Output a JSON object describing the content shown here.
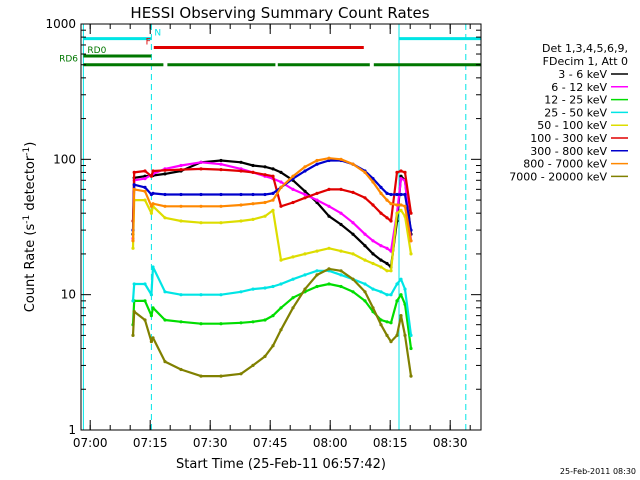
{
  "chart_data": {
    "type": "line",
    "title": "HESSI Observing Summary Count Rates",
    "xlabel": "Start Time (25-Feb-11 06:57:42)",
    "ylabel_pre": "Count Rate (s",
    "ylabel_sup1": "-1",
    "ylabel_mid": " detector",
    "ylabel_sup2": "-1",
    "ylabel_post": ")",
    "x_unit": "minutes since 06:57:42",
    "xlim": [
      0,
      100
    ],
    "ylim": [
      1,
      1000
    ],
    "y_scale": "log",
    "x_ticks": [
      {
        "label": "07:00",
        "value": 2.3
      },
      {
        "label": "07:15",
        "value": 17.3
      },
      {
        "label": "07:30",
        "value": 32.3
      },
      {
        "label": "07:45",
        "value": 47.3
      },
      {
        "label": "08:00",
        "value": 62.3
      },
      {
        "label": "08:15",
        "value": 77.3
      },
      {
        "label": "08:30",
        "value": 92.3
      }
    ],
    "y_ticks": [
      {
        "label": "1",
        "value": 1
      },
      {
        "label": "10",
        "value": 10
      },
      {
        "label": "100",
        "value": 100
      },
      {
        "label": "1000",
        "value": 1000
      }
    ],
    "legend_header": [
      "Det 1,3,4,5,6,9,",
      "FDecim 1, Att 0"
    ],
    "legend_placement": "right",
    "timestamp": "25-Feb-2011 08:30",
    "vlines": [
      {
        "x": 0.6,
        "color": "#00e5e5",
        "style": "solid"
      },
      {
        "x": 17.6,
        "color": "#00e5e5",
        "style": "dashed"
      },
      {
        "x": 79.5,
        "color": "#00e5e5",
        "style": "solid"
      },
      {
        "x": 96.2,
        "color": "#00e5e5",
        "style": "dashed"
      }
    ],
    "flags": [
      {
        "label": "N",
        "label_color": "#00e5e5",
        "color": "#00e5e5",
        "y": 780,
        "segments": [
          [
            0.6,
            17.6
          ],
          [
            79.5,
            100
          ]
        ]
      },
      {
        "label": "F",
        "label_color": "#e00000",
        "color": "#e00000",
        "y": 670,
        "segments": [
          [
            18.2,
            70.7
          ]
        ]
      },
      {
        "label": "RD0",
        "label_color": "#007700",
        "color": "#007700",
        "y": 580,
        "segments": [
          [
            0.6,
            17.6
          ]
        ]
      },
      {
        "label": "RD6",
        "label_color": "#007700",
        "color": "#007700",
        "y": 500,
        "segments": [
          [
            0.6,
            20.6
          ],
          [
            21.6,
            48.6
          ],
          [
            49.2,
            72.2
          ],
          [
            73.2,
            100
          ]
        ]
      }
    ],
    "series": [
      {
        "name": "3 - 6 keV",
        "color": "#000000",
        "x": [
          13.0,
          13.3,
          16.0,
          18.0,
          21.0,
          25.0,
          30.0,
          35.0,
          40.0,
          43.0,
          46.0,
          48.0,
          50.0,
          53.0,
          56.0,
          59.0,
          62.0,
          65.0,
          68.0,
          71.0,
          73.0,
          75.0,
          76.5,
          77.5,
          79.0,
          80.0,
          81.0,
          82.5
        ],
        "y": [
          28,
          73,
          75,
          76,
          78,
          82,
          95,
          98,
          95,
          90,
          88,
          85,
          80,
          70,
          58,
          48,
          38,
          33,
          28,
          23,
          20,
          18,
          17,
          16,
          35,
          75,
          70,
          28
        ]
      },
      {
        "name": "6 - 12 keV",
        "color": "#ff00ff",
        "x": [
          13.0,
          13.3,
          16.0,
          18.0,
          21.0,
          25.0,
          30.0,
          35.0,
          40.0,
          43.0,
          46.0,
          48.0,
          50.0,
          53.0,
          56.0,
          59.0,
          62.0,
          65.0,
          68.0,
          71.0,
          73.0,
          75.0,
          76.5,
          77.5,
          79.0,
          80.0,
          81.0,
          82.5
        ],
        "y": [
          26,
          70,
          72,
          78,
          85,
          90,
          95,
          92,
          85,
          80,
          75,
          72,
          68,
          60,
          55,
          50,
          45,
          40,
          34,
          28,
          25,
          23,
          22,
          21,
          40,
          72,
          70,
          25
        ]
      },
      {
        "name": "12 - 25 keV",
        "color": "#00dd00",
        "x": [
          13.0,
          13.3,
          16.0,
          17.6,
          18.0,
          21.0,
          25.0,
          30.0,
          35.0,
          40.0,
          43.0,
          46.0,
          48.0,
          50.0,
          53.0,
          56.0,
          59.0,
          62.0,
          65.0,
          68.0,
          71.0,
          73.0,
          75.0,
          76.5,
          77.5,
          79.0,
          80.0,
          81.0,
          82.5
        ],
        "y": [
          6,
          9,
          9,
          7,
          8,
          6.5,
          6.3,
          6.1,
          6.1,
          6.2,
          6.3,
          6.5,
          7.0,
          8.0,
          9.5,
          10.5,
          11.5,
          12.0,
          11.5,
          10.5,
          9.0,
          7.5,
          6.5,
          6.3,
          6.2,
          9.0,
          10,
          8.5,
          4
        ]
      },
      {
        "name": "25 - 50 keV",
        "color": "#00e5e5",
        "x": [
          13.0,
          13.3,
          16.0,
          17.6,
          18.0,
          21.0,
          25.0,
          30.0,
          35.0,
          40.0,
          43.0,
          46.0,
          48.0,
          50.0,
          53.0,
          56.0,
          59.0,
          62.0,
          65.0,
          68.0,
          71.0,
          73.0,
          75.0,
          76.5,
          77.5,
          79.0,
          80.0,
          81.0,
          82.5
        ],
        "y": [
          9,
          12,
          12,
          10,
          16,
          10.5,
          10,
          10,
          10,
          10.5,
          11,
          11.2,
          11.5,
          12,
          13,
          14,
          15,
          15,
          14,
          13,
          12,
          11,
          10.5,
          10,
          10,
          12,
          13,
          11,
          5
        ]
      },
      {
        "name": "50 - 100 keV",
        "color": "#dddd00",
        "x": [
          13.0,
          13.3,
          16.0,
          17.6,
          18.0,
          21.0,
          25.0,
          30.0,
          35.0,
          40.0,
          43.0,
          46.0,
          48.0,
          50.0,
          53.0,
          56.0,
          59.0,
          62.0,
          65.0,
          68.0,
          71.0,
          73.0,
          75.0,
          76.5,
          77.5,
          79.0,
          80.0,
          81.0,
          82.5
        ],
        "y": [
          22,
          50,
          50,
          40,
          45,
          37,
          35,
          34,
          34,
          35,
          36,
          38,
          42,
          18,
          19,
          20,
          21,
          22,
          21,
          20,
          18,
          17,
          16,
          15,
          15,
          40,
          42,
          38,
          20
        ]
      },
      {
        "name": "100 - 300 keV",
        "color": "#e00000",
        "x": [
          13.0,
          13.3,
          16.0,
          17.6,
          18.0,
          21.0,
          25.0,
          30.0,
          35.0,
          40.0,
          43.0,
          46.0,
          48.0,
          50.0,
          53.0,
          56.0,
          59.0,
          62.0,
          65.0,
          68.0,
          71.0,
          73.0,
          75.0,
          76.5,
          77.5,
          79.0,
          80.0,
          81.0,
          82.5
        ],
        "y": [
          35,
          80,
          82,
          75,
          82,
          83,
          84,
          85,
          84,
          82,
          80,
          77,
          75,
          45,
          48,
          52,
          56,
          60,
          60,
          57,
          52,
          46,
          40,
          37,
          35,
          80,
          82,
          80,
          40
        ]
      },
      {
        "name": "300 - 800 keV",
        "color": "#0000cc",
        "x": [
          13.0,
          13.3,
          16.0,
          17.6,
          18.0,
          21.0,
          25.0,
          30.0,
          35.0,
          40.0,
          43.0,
          46.0,
          48.0,
          50.0,
          53.0,
          56.0,
          59.0,
          62.0,
          65.0,
          68.0,
          71.0,
          73.0,
          75.0,
          76.5,
          77.5,
          79.0,
          80.0,
          81.0,
          82.5
        ],
        "y": [
          30,
          65,
          62,
          55,
          56,
          55,
          55,
          55,
          55,
          55,
          55,
          55,
          56,
          62,
          72,
          82,
          92,
          98,
          98,
          92,
          82,
          72,
          62,
          56,
          55,
          55,
          55,
          55,
          30
        ]
      },
      {
        "name": "800 - 7000 keV",
        "color": "#ff8800",
        "x": [
          13.0,
          13.3,
          16.0,
          17.6,
          18.0,
          21.0,
          25.0,
          30.0,
          35.0,
          40.0,
          43.0,
          46.0,
          48.0,
          50.0,
          53.0,
          56.0,
          59.0,
          62.0,
          65.0,
          68.0,
          71.0,
          73.0,
          75.0,
          76.5,
          77.5,
          79.0,
          80.0,
          81.0,
          82.5
        ],
        "y": [
          25,
          60,
          58,
          45,
          47,
          45,
          45,
          45,
          45,
          46,
          47,
          48,
          50,
          62,
          75,
          88,
          98,
          102,
          100,
          92,
          80,
          68,
          56,
          50,
          47,
          46,
          46,
          45,
          25
        ]
      },
      {
        "name": "7000 - 20000 keV",
        "color": "#808000",
        "x": [
          13.0,
          13.3,
          16.0,
          17.6,
          18.0,
          21.0,
          25.0,
          30.0,
          35.0,
          40.0,
          43.0,
          46.0,
          48.0,
          50.0,
          53.0,
          56.0,
          59.0,
          62.0,
          65.0,
          68.0,
          71.0,
          73.0,
          75.0,
          76.5,
          77.5,
          79.0,
          80.0,
          81.0,
          82.5
        ],
        "y": [
          5,
          7.5,
          6.5,
          4.5,
          4.8,
          3.2,
          2.8,
          2.5,
          2.5,
          2.6,
          3.0,
          3.5,
          4.2,
          5.5,
          8.0,
          11.0,
          14.0,
          15.5,
          15.0,
          13.0,
          10.5,
          8.0,
          6.0,
          5.0,
          4.5,
          5,
          7,
          5,
          2.5
        ]
      }
    ]
  }
}
